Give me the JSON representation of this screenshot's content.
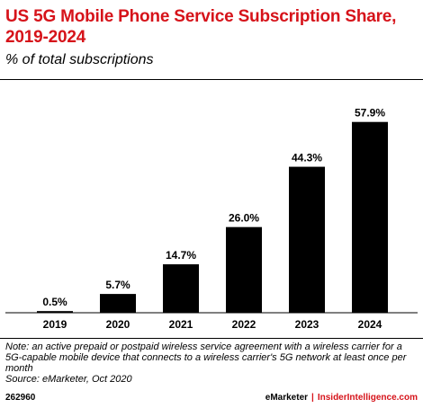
{
  "header": {
    "title": "US 5G Mobile Phone Service Subscription Share, 2019-2024",
    "subtitle": "% of total subscriptions"
  },
  "chart_data": {
    "type": "bar",
    "categories": [
      "2019",
      "2020",
      "2021",
      "2022",
      "2023",
      "2024"
    ],
    "values": [
      0.5,
      5.7,
      14.7,
      26.0,
      44.3,
      57.9
    ],
    "value_labels": [
      "0.5%",
      "5.7%",
      "14.7%",
      "26.0%",
      "44.3%",
      "57.9%"
    ],
    "title": "US 5G Mobile Phone Service Subscription Share, 2019-2024",
    "subtitle": "% of total subscriptions",
    "ylim": [
      0,
      60
    ],
    "grid": false,
    "bar_color": "#000000"
  },
  "notes": {
    "note": "Note: an active prepaid or postpaid wireless service agreement with a wireless carrier for a 5G-capable mobile device that connects to a wireless carrier's 5G network at least once per month",
    "source": "Source: eMarketer, Oct 2020"
  },
  "footer": {
    "chart_id": "262960",
    "brand": "eMarketer",
    "separator": "|",
    "site": "InsiderIntelligence.com"
  },
  "colors": {
    "accent": "#d6131a",
    "text": "#000000"
  }
}
